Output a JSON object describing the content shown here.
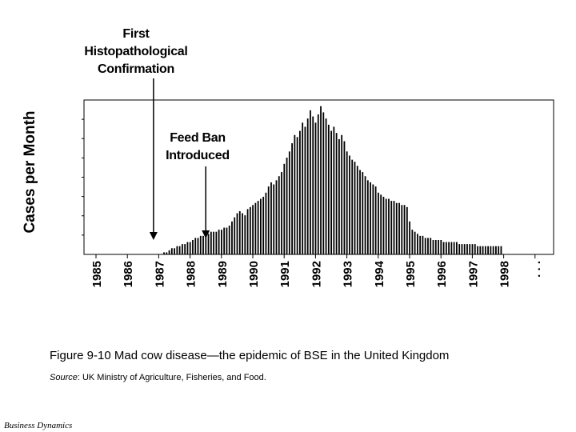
{
  "chart_data": {
    "type": "bar",
    "title": "",
    "xlabel": "",
    "ylabel": "Cases per Month",
    "x_ticks": [
      "1985",
      "1986",
      "1987",
      "1988",
      "1989",
      "1990",
      "1991",
      "1992",
      "1993",
      "1994",
      "1995",
      "1996",
      "1997",
      "1998",
      ". . ."
    ],
    "bar_color": "#000000",
    "grid": false,
    "annotations": [
      {
        "id": "first",
        "lines": [
          "First",
          "Histopathological",
          "Confirmation"
        ],
        "x": "1986-11"
      },
      {
        "id": "feed",
        "lines": [
          "Feed Ban",
          "Introduced"
        ],
        "x": "1988-07"
      }
    ],
    "series": [
      {
        "values_by_month_start": "1987-01",
        "values": [
          0,
          0,
          1,
          1,
          2,
          3,
          3,
          4,
          4,
          5,
          5,
          6,
          6,
          7,
          8,
          8,
          9,
          9,
          10,
          10,
          11,
          11,
          11,
          12,
          12,
          13,
          13,
          14,
          16,
          18,
          20,
          21,
          20,
          19,
          22,
          23,
          24,
          25,
          26,
          27,
          28,
          30,
          33,
          35,
          34,
          36,
          38,
          40,
          44,
          47,
          50,
          54,
          58,
          57,
          60,
          64,
          62,
          66,
          70,
          67,
          64,
          68,
          72,
          69,
          66,
          63,
          60,
          62,
          59,
          56,
          58,
          55,
          50,
          48,
          46,
          45,
          43,
          41,
          40,
          38,
          36,
          35,
          34,
          33,
          30,
          29,
          28,
          27,
          27,
          26,
          26,
          25,
          25,
          24,
          24,
          23,
          16,
          12,
          11,
          10,
          9,
          9,
          8,
          8,
          8,
          7,
          7,
          7,
          7,
          6,
          6,
          6,
          6,
          6,
          6,
          5,
          5,
          5,
          5,
          5,
          5,
          5,
          4,
          4,
          4,
          4,
          4,
          4,
          4,
          4,
          4,
          4
        ]
      }
    ]
  },
  "caption": "Figure 9-10  Mad cow disease—the epidemic of BSE in the United Kingdom",
  "source_label": "Source",
  "source_text": ":  UK Ministry of Agriculture, Fisheries, and Food.",
  "footer": "Business Dynamics"
}
